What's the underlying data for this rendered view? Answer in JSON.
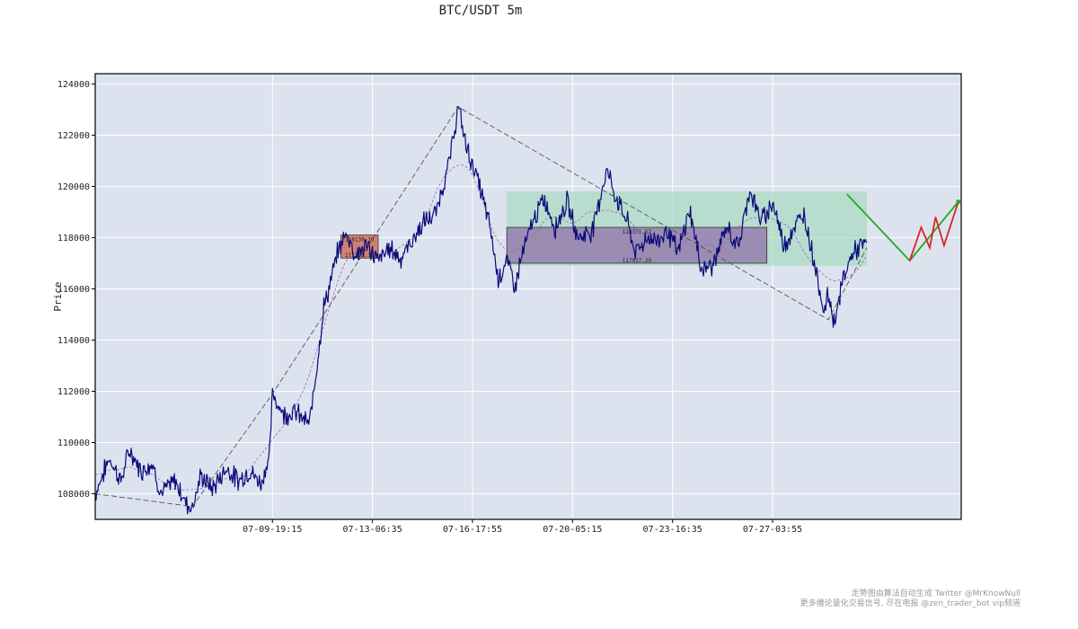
{
  "chart_data": {
    "type": "line",
    "title": "BTC/USDT 5m",
    "ylabel": "Price",
    "xlabel": "",
    "ylim": [
      107000,
      124400
    ],
    "yticks": [
      108000,
      110000,
      112000,
      114000,
      116000,
      118000,
      120000,
      122000,
      124000
    ],
    "xtick_labels": [
      "07-09-19:15",
      "07-13-06:35",
      "07-16-17:55",
      "07-20-05:15",
      "07-23-16:35",
      "07-27-03:55"
    ],
    "xtick_positions": [
      2.4,
      5.9,
      9.4,
      12.9,
      16.4,
      19.9
    ],
    "x_range": [
      -3.8,
      23.2
    ],
    "grid": true,
    "colors": {
      "plot_bg": "#dce3ef",
      "price": "#0a0a78",
      "zigzag": "#555555",
      "smooth": "#b060b0",
      "zone_red": "#cc6655",
      "zone_purple": "#9070a8",
      "zone_green": "#9fd8b8",
      "projection_up": "#22aa22",
      "projection_red": "#dd2222"
    },
    "price_anchors": [
      [
        -3.8,
        108000
      ],
      [
        -3.3,
        109400
      ],
      [
        -2.9,
        108500
      ],
      [
        -2.6,
        109700
      ],
      [
        -2.2,
        108900
      ],
      [
        -1.8,
        109200
      ],
      [
        -1.5,
        108000
      ],
      [
        -1.0,
        108500
      ],
      [
        -0.6,
        107600
      ],
      [
        -0.4,
        107500
      ],
      [
        -0.1,
        108700
      ],
      [
        0.3,
        108200
      ],
      [
        0.8,
        109000
      ],
      [
        1.2,
        108500
      ],
      [
        1.6,
        108900
      ],
      [
        2.0,
        108400
      ],
      [
        2.3,
        109500
      ],
      [
        2.4,
        111900
      ],
      [
        2.8,
        111100
      ],
      [
        3.2,
        111200
      ],
      [
        3.7,
        110700
      ],
      [
        4.2,
        115300
      ],
      [
        4.4,
        116100
      ],
      [
        4.7,
        117500
      ],
      [
        5.0,
        118200
      ],
      [
        5.3,
        117300
      ],
      [
        5.7,
        117700
      ],
      [
        6.1,
        117100
      ],
      [
        6.5,
        117600
      ],
      [
        6.9,
        117200
      ],
      [
        7.3,
        117900
      ],
      [
        7.7,
        118600
      ],
      [
        8.1,
        118900
      ],
      [
        8.6,
        121000
      ],
      [
        8.9,
        123100
      ],
      [
        9.2,
        121500
      ],
      [
        9.6,
        120200
      ],
      [
        10.0,
        118500
      ],
      [
        10.3,
        116400
      ],
      [
        10.6,
        117100
      ],
      [
        10.9,
        116100
      ],
      [
        11.1,
        117200
      ],
      [
        11.5,
        118600
      ],
      [
        11.9,
        119500
      ],
      [
        12.3,
        118400
      ],
      [
        12.7,
        119400
      ],
      [
        13.1,
        118000
      ],
      [
        13.6,
        118300
      ],
      [
        14.1,
        120700
      ],
      [
        14.4,
        119600
      ],
      [
        14.8,
        118700
      ],
      [
        15.1,
        117400
      ],
      [
        15.5,
        118000
      ],
      [
        15.9,
        117900
      ],
      [
        16.2,
        118300
      ],
      [
        16.6,
        117400
      ],
      [
        17.0,
        119100
      ],
      [
        17.4,
        116800
      ],
      [
        17.8,
        116900
      ],
      [
        18.3,
        118400
      ],
      [
        18.7,
        117600
      ],
      [
        19.1,
        119900
      ],
      [
        19.5,
        118600
      ],
      [
        19.9,
        119400
      ],
      [
        20.3,
        117700
      ],
      [
        20.6,
        118300
      ],
      [
        21.0,
        118900
      ],
      [
        21.3,
        117400
      ],
      [
        21.7,
        115100
      ],
      [
        21.85,
        115800
      ],
      [
        22.05,
        114700
      ],
      [
        22.4,
        116500
      ],
      [
        22.7,
        117400
      ],
      [
        23.2,
        117800
      ]
    ],
    "zigzag": [
      [
        -3.8,
        108000
      ],
      [
        -0.4,
        107500
      ],
      [
        2.4,
        111900
      ],
      [
        8.9,
        123100
      ],
      [
        21.85,
        114800
      ],
      [
        23.2,
        117600
      ]
    ],
    "zones": [
      {
        "color": "red",
        "x0": 4.8,
        "x1": 6.1,
        "y0": 117200,
        "y1": 118100,
        "top_label": "118138.16",
        "bottom_label": "117191.13"
      },
      {
        "color": "green",
        "x0": 10.6,
        "x1": 23.2,
        "y0": 116900,
        "y1": 119800,
        "top_label": "",
        "bottom_label": ""
      },
      {
        "color": "purple",
        "x0": 10.6,
        "x1": 19.7,
        "y0": 117000,
        "y1": 118400,
        "top_label": "118371.52",
        "bottom_label": "117017.29"
      }
    ],
    "projection_green": [
      [
        22.5,
        119700
      ],
      [
        24.7,
        117100
      ],
      [
        26.4,
        119400
      ]
    ],
    "projection_red": [
      [
        24.7,
        117100
      ],
      [
        25.1,
        118400
      ],
      [
        25.4,
        117600
      ],
      [
        25.6,
        118800
      ],
      [
        25.9,
        117700
      ],
      [
        26.4,
        119400
      ]
    ]
  },
  "footer": {
    "line1": "走势图由算法自动生成  Twitter @MrKnowNull",
    "line2": "更多缠论量化交易信号, 尽在电报 @zen_trader_bot vip频道"
  }
}
